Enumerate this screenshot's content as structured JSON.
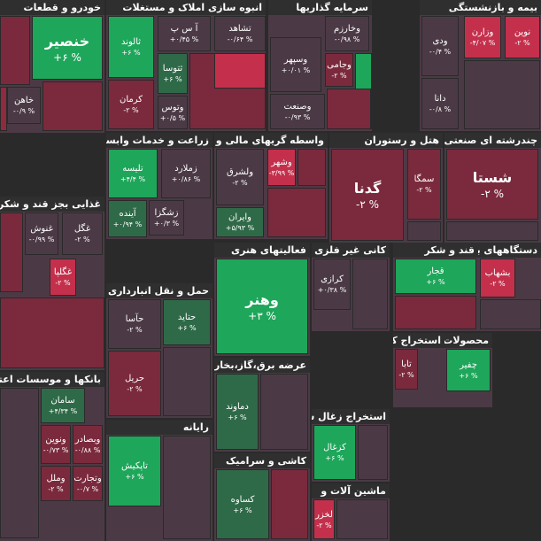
{
  "sectors": [
    {
      "title": "خودرو و قطعات",
      "tiles": [
        {
          "symbol": "خنصیر",
          "change": "+۶ %"
        },
        {
          "symbol": "خاهن",
          "change": "-۰/۹ %"
        }
      ]
    },
    {
      "title": "انبوه سازی املاک و مستغلات",
      "tiles": [
        {
          "symbol": "ثالوند",
          "change": "+۶ %"
        },
        {
          "symbol": "آ س پ",
          "change": "+۰/۴۵ %"
        },
        {
          "symbol": "تشاهد",
          "change": "-۰/۶۴ %"
        },
        {
          "symbol": "ثتوسا",
          "change": "+۶ %"
        },
        {
          "symbol": "کرمان",
          "change": "-۲ %"
        },
        {
          "symbol": "وتوس",
          "change": "+۰/۵ %"
        }
      ]
    },
    {
      "title": "سرمایه گذاریها",
      "tiles": [
        {
          "symbol": "وخارزم",
          "change": "-۰/۹۸ %"
        },
        {
          "symbol": "وسپهر",
          "change": "+۰/۰۱ %"
        },
        {
          "symbol": "وجامی",
          "change": "-۲ %"
        },
        {
          "symbol": "وصنعت",
          "change": "-۰/۹۳ %"
        }
      ]
    },
    {
      "title": "بیمه و بازنشستگی",
      "tiles": [
        {
          "symbol": "ودی",
          "change": "-۰/۴ %"
        },
        {
          "symbol": "وزارن",
          "change": "-۴/۰۷ %"
        },
        {
          "symbol": "نوین",
          "change": "-۲ %"
        },
        {
          "symbol": "دانا",
          "change": "-۰/۸ %"
        }
      ]
    },
    {
      "title": "زراعت و خدمات وابسته",
      "tiles": [
        {
          "symbol": "تلیسه",
          "change": "+۴/۴ %"
        },
        {
          "symbol": "زملارد",
          "change": "+۰/۸۶ %"
        },
        {
          "symbol": "زشگزا",
          "change": "+۰/۳ %"
        },
        {
          "symbol": "آینده",
          "change": "+۰/۹۴ %"
        }
      ]
    },
    {
      "title": "واسطه گریهای مالی و پولی",
      "tiles": [
        {
          "symbol": "ولشرق",
          "change": "-۲ %"
        },
        {
          "symbol": "وشهر",
          "change": "-۳/۹۹ %"
        },
        {
          "symbol": "وایران",
          "change": "+۵/۹۳ %"
        }
      ]
    },
    {
      "title": "هتل و رستوران",
      "tiles": [
        {
          "symbol": "گدنا",
          "change": "-۲ %"
        },
        {
          "symbol": "سمگا",
          "change": "-۲ %"
        }
      ]
    },
    {
      "title": "چندرشته ای صنعتی",
      "tiles": [
        {
          "symbol": "شستا",
          "change": "-۲ %"
        }
      ]
    },
    {
      "title": "غذایی بجز قند و شکر",
      "tiles": [
        {
          "symbol": "غنوش",
          "change": "-۰/۹۹ %"
        },
        {
          "symbol": "غگل",
          "change": "-۲ %"
        },
        {
          "symbol": "غگلپا",
          "change": "-۲ %"
        }
      ]
    },
    {
      "title": "فعالیتهای هنری",
      "tiles": [
        {
          "symbol": "وهنر",
          "change": "+۳ %"
        }
      ]
    },
    {
      "title": "کانی غیر فلزی",
      "tiles": [
        {
          "symbol": "کرازی",
          "change": "+۰/۳۸ %"
        }
      ]
    },
    {
      "title": "قند و شکر",
      "tiles": [
        {
          "symbol": "قجار",
          "change": "+۶ %"
        }
      ]
    },
    {
      "title": "دستگاههای برق",
      "tiles": [
        {
          "symbol": "بشهاب",
          "change": "-۲ %"
        }
      ]
    },
    {
      "title": "حمل و نقل انبارداری و",
      "tiles": [
        {
          "symbol": "حتاید",
          "change": "+۶ %"
        },
        {
          "symbol": "حآسا",
          "change": "-۲ %"
        },
        {
          "symbol": "حریل",
          "change": "-۲ %"
        }
      ]
    },
    {
      "title": "عرضه برق،گاز،بخار و آب",
      "tiles": [
        {
          "symbol": "دماوند",
          "change": "+۶ %"
        }
      ]
    },
    {
      "title": "استخراج کانه های",
      "tiles": [
        {
          "symbol": "تابا",
          "change": "-۲ %"
        }
      ]
    },
    {
      "title": "بانکها و موسسات اعتباری",
      "tiles": [
        {
          "symbol": "سامان",
          "change": "+۴/۳۴ %"
        },
        {
          "symbol": "ونوین",
          "change": "-۰/۷۳ %"
        },
        {
          "symbol": "وبصادر",
          "change": "-۰/۸۸ %"
        },
        {
          "symbol": "وملل",
          "change": "-۲ %"
        },
        {
          "symbol": "وتجارت",
          "change": "-۰/۷ %"
        }
      ]
    },
    {
      "title": "رایانه",
      "tiles": [
        {
          "symbol": "تاپکیش",
          "change": "+۶ %"
        }
      ]
    },
    {
      "title": "استخراج زغال سنگ",
      "tiles": [
        {
          "symbol": "کزغال",
          "change": "+۶ %"
        }
      ]
    },
    {
      "title": "کاشی و سرامیک",
      "tiles": [
        {
          "symbol": "کساوه",
          "change": "+۶ %"
        }
      ]
    },
    {
      "title": "ماشین آلات و",
      "tiles": [
        {
          "symbol": "لخزر",
          "change": "-۲ %"
        }
      ]
    },
    {
      "title": "محصولات",
      "tiles": [
        {
          "symbol": "چفیر",
          "change": "+۶ %"
        }
      ]
    }
  ]
}
